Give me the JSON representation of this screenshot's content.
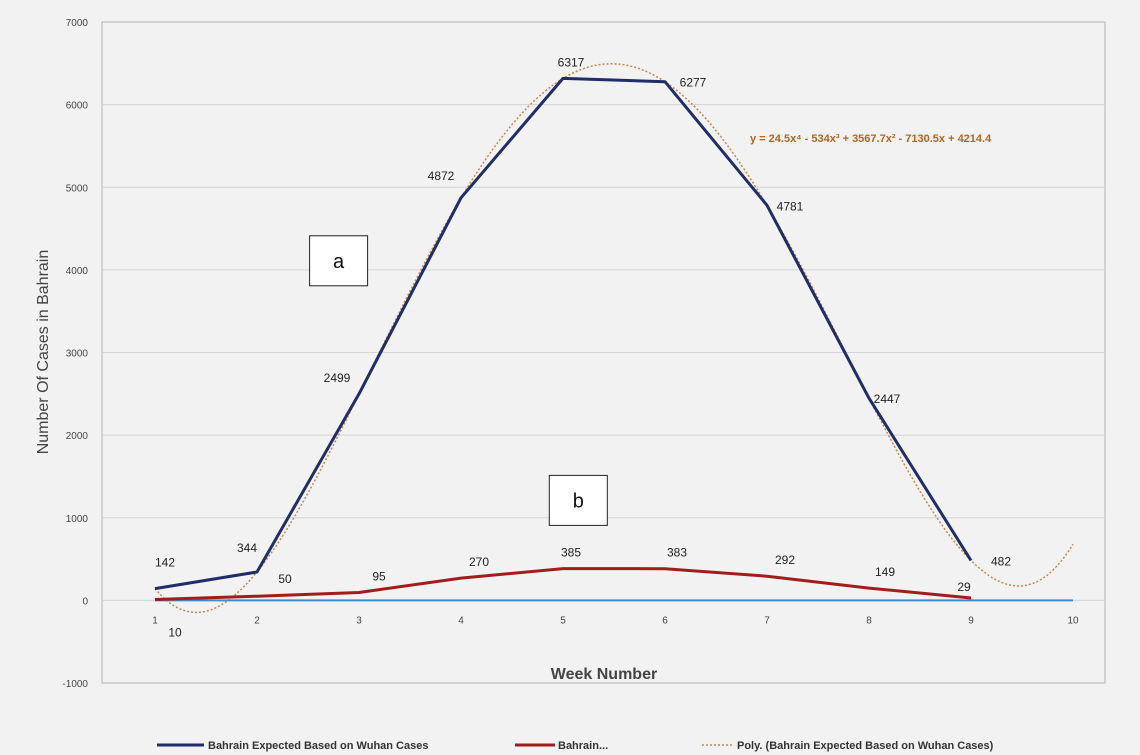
{
  "chart_data": {
    "type": "line",
    "xlabel": "Week Number",
    "ylabel": "Number Of Cases in Bahrain",
    "ylim": [
      -1000,
      7000
    ],
    "yticks": [
      -1000,
      0,
      1000,
      2000,
      3000,
      4000,
      5000,
      6000,
      7000
    ],
    "xlim": [
      1,
      10
    ],
    "xticks": [
      1,
      2,
      3,
      4,
      5,
      6,
      7,
      8,
      9,
      10
    ],
    "grid": "horizontal",
    "legend_position": "bottom",
    "series": [
      {
        "name": "Bahrain Expected Based on Wuhan Cases",
        "color": "#1f2d6b",
        "style": "solid",
        "x": [
          1,
          2,
          3,
          4,
          5,
          6,
          7,
          8,
          9
        ],
        "values": [
          142,
          344,
          2499,
          4872,
          6317,
          6277,
          4781,
          2447,
          482
        ],
        "data_labels": [
          "142",
          "344",
          "2499",
          "4872",
          "6317",
          "6277",
          "4781",
          "2447",
          "482"
        ]
      },
      {
        "name": "Bahrain...",
        "color": "#a31c1c",
        "style": "solid",
        "x": [
          1,
          2,
          3,
          4,
          5,
          6,
          7,
          8,
          9
        ],
        "values": [
          10,
          50,
          95,
          270,
          385,
          383,
          292,
          149,
          29
        ],
        "data_labels": [
          "10",
          "50",
          "95",
          "270",
          "385",
          "383",
          "292",
          "149",
          "29"
        ]
      },
      {
        "name": "",
        "color": "#3b8fd0",
        "style": "solid",
        "x": [
          1,
          10
        ],
        "values": [
          0,
          0
        ]
      },
      {
        "name": "Poly. (Bahrain Expected Based on Wuhan Cases)",
        "color": "#c9864a",
        "style": "dotted",
        "equation": "y = 24.5x⁴ - 534x³ + 3567.7x² - 7130.5x + 4214.4",
        "coefficients": [
          24.5,
          -534,
          3567.7,
          -7130.5,
          4214.4
        ],
        "x_range": [
          1,
          10
        ]
      }
    ],
    "annotations": [
      {
        "text": "a",
        "x": 2.8,
        "y": 4110
      },
      {
        "text": "b",
        "x": 5.15,
        "y": 1210
      }
    ]
  }
}
